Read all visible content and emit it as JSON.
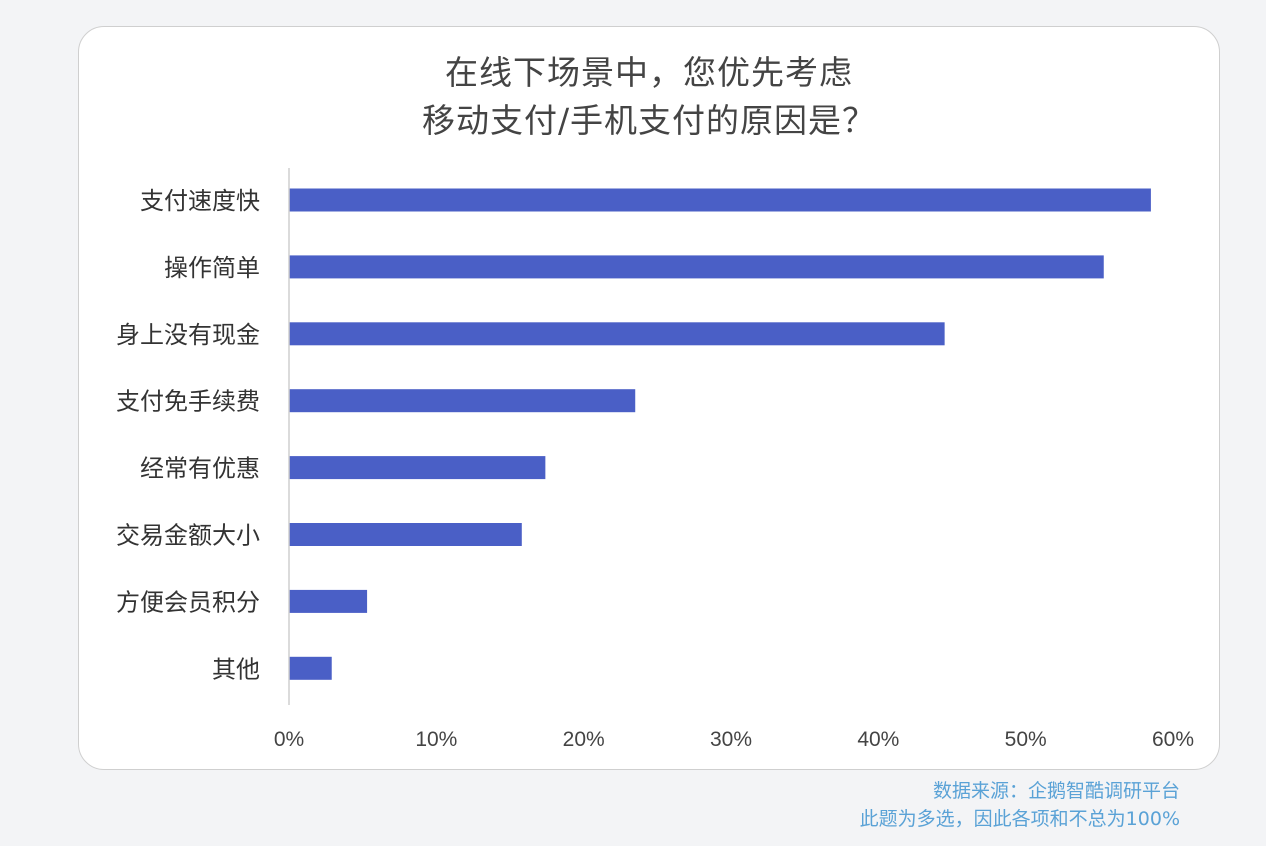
{
  "chart_data": {
    "type": "bar",
    "orientation": "horizontal",
    "title_lines": [
      "在线下场景中，您优先考虑",
      "移动支付/手机支付的原因是？"
    ],
    "categories": [
      "支付速度快",
      "操作简单",
      "身上没有现金",
      "支付免手续费",
      "经常有优惠",
      "交易金额大小",
      "方便会员积分",
      "其他"
    ],
    "values": [
      58.5,
      55.3,
      44.5,
      23.5,
      17.4,
      15.8,
      5.3,
      2.9
    ],
    "xlim": [
      0,
      60
    ],
    "x_ticks": [
      "0%",
      "10%",
      "20%",
      "30%",
      "40%",
      "50%",
      "60%"
    ],
    "grid": false,
    "bar_color": "#4a5fc6"
  },
  "footer": {
    "source": "数据来源：企鹅智酷调研平台",
    "note": "此题为多选，因此各项和不总为100%"
  }
}
